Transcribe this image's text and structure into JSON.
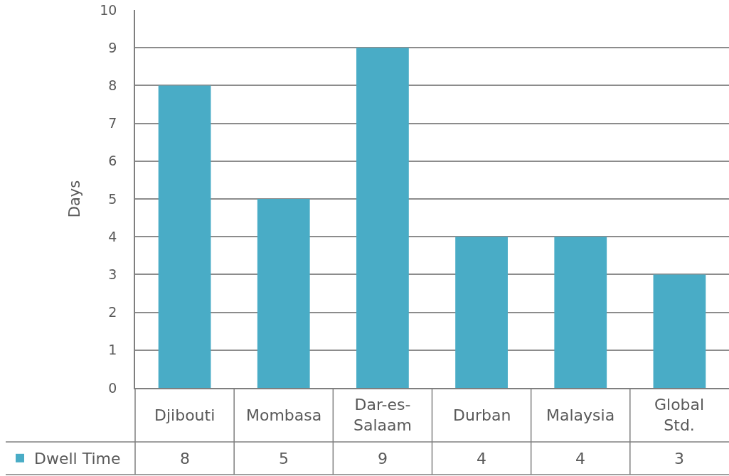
{
  "chart_data": {
    "type": "bar",
    "ylabel": "Days",
    "categories": [
      "Djibouti",
      "Mombasa",
      "Dar-es-Salaam",
      "Durban",
      "Malaysia",
      "Global Std."
    ],
    "series": [
      {
        "name": "Dwell Time",
        "color": "#49acc6",
        "values": [
          8,
          5,
          9,
          4,
          4,
          3
        ]
      }
    ],
    "ylim": [
      0,
      10
    ],
    "yticks": [
      0,
      1,
      2,
      3,
      4,
      5,
      6,
      7,
      8,
      9,
      10
    ],
    "grid": "y",
    "legend": "bottom left",
    "data_labels": true
  }
}
